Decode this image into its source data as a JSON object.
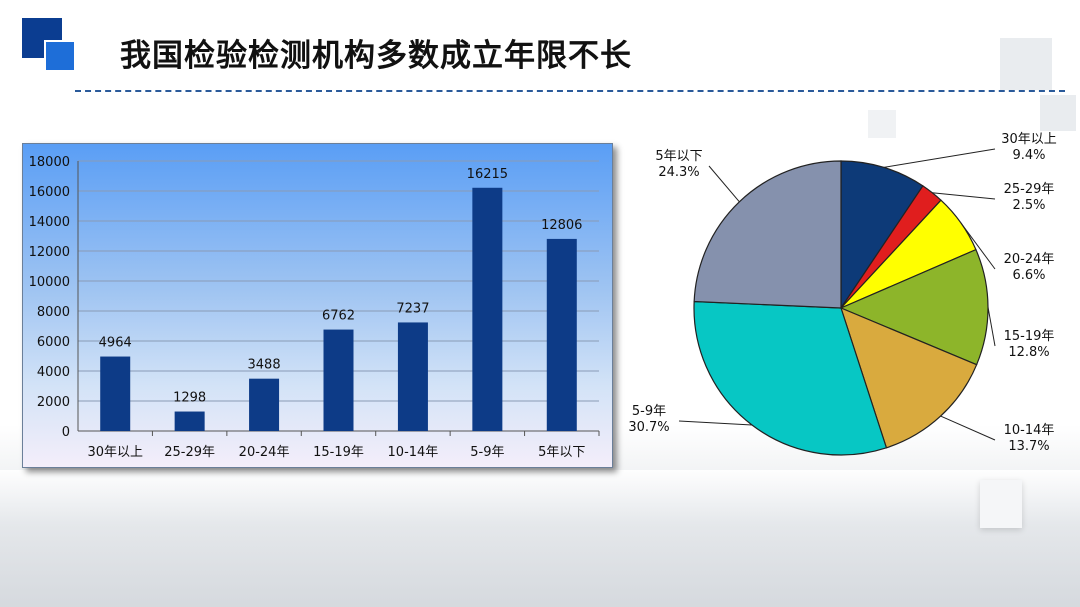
{
  "title": "我国检验检测机构多数成立年限不长",
  "chart_data": [
    {
      "type": "bar",
      "categories": [
        "30年以上",
        "25-29年",
        "20-24年",
        "15-19年",
        "10-14年",
        "5-9年",
        "5年以下"
      ],
      "values": [
        4964,
        1298,
        3488,
        6762,
        7237,
        16215,
        12806
      ],
      "value_labels": [
        "4964",
        "1298",
        "3488",
        "6762",
        "7237",
        "16215",
        "12806"
      ],
      "ylim": [
        0,
        18000
      ],
      "yticks": [
        "0",
        "2000",
        "4000",
        "6000",
        "8000",
        "10000",
        "12000",
        "14000",
        "16000",
        "18000"
      ],
      "grid": true,
      "bar_color": "#0d3b87",
      "title": "",
      "xlabel": "",
      "ylabel": ""
    },
    {
      "type": "pie",
      "categories": [
        "30年以上",
        "25-29年",
        "20-24年",
        "15-19年",
        "10-14年",
        "5-9年",
        "5年以下"
      ],
      "values": [
        9.4,
        2.5,
        6.6,
        12.8,
        13.7,
        30.7,
        24.3
      ],
      "percent_labels": [
        "9.4%",
        "2.5%",
        "6.6%",
        "12.8%",
        "13.7%",
        "30.7%",
        "24.3%"
      ],
      "colors": [
        "#0d3a78",
        "#e01e1e",
        "#ffff00",
        "#8db52a",
        "#d9aa3e",
        "#07c7c4",
        "#8591ad"
      ]
    }
  ]
}
